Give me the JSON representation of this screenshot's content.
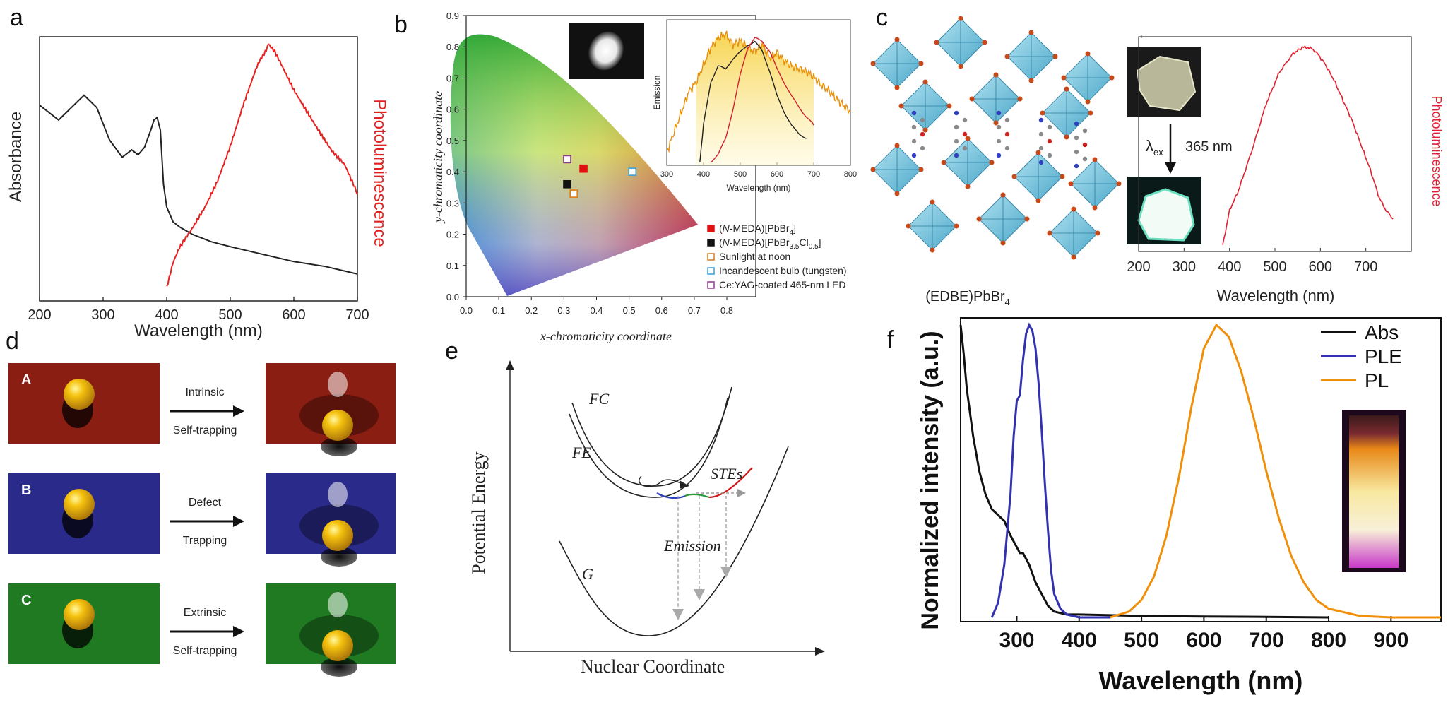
{
  "panel_labels": {
    "a": "a",
    "b": "b",
    "c": "c",
    "d": "d",
    "e": "e",
    "f": "f"
  },
  "chart_data": [
    {
      "type": "line",
      "panel": "a",
      "xlabel": "Wavelength (nm)",
      "ylabel_left": "Absorbance",
      "ylabel_right": "Photoluminescence",
      "xlim": [
        200,
        700
      ],
      "xticks": [
        "200",
        "300",
        "400",
        "500",
        "600",
        "700"
      ],
      "series": [
        {
          "color": "#222222",
          "x": [
            200,
            215,
            230,
            250,
            270,
            290,
            310,
            330,
            345,
            355,
            365,
            375,
            380,
            385,
            390,
            395,
            400,
            410,
            420,
            440,
            470,
            500,
            550,
            600,
            650,
            700
          ],
          "values": [
            0.76,
            0.73,
            0.7,
            0.75,
            0.8,
            0.75,
            0.62,
            0.55,
            0.58,
            0.56,
            0.59,
            0.66,
            0.7,
            0.71,
            0.66,
            0.44,
            0.35,
            0.29,
            0.27,
            0.24,
            0.21,
            0.19,
            0.16,
            0.13,
            0.11,
            0.08
          ]
        },
        {
          "color": "#e82020",
          "x": [
            400,
            410,
            420,
            440,
            460,
            480,
            500,
            520,
            540,
            555,
            560,
            570,
            580,
            600,
            620,
            640,
            660,
            680,
            700
          ],
          "values": [
            0.02,
            0.12,
            0.18,
            0.26,
            0.35,
            0.46,
            0.6,
            0.76,
            0.9,
            0.98,
            1.0,
            0.97,
            0.92,
            0.82,
            0.74,
            0.66,
            0.58,
            0.52,
            0.4
          ]
        }
      ]
    },
    {
      "type": "scatter",
      "panel": "b",
      "xlabel": "x-chromaticity coordinate",
      "ylabel": "y-chromaticity coordinate",
      "xlim": [
        0,
        0.8
      ],
      "ylim": [
        0,
        0.9
      ],
      "xticks": [
        "0.0",
        "0.1",
        "0.2",
        "0.3",
        "0.4",
        "0.5",
        "0.6",
        "0.7",
        "0.8"
      ],
      "yticks": [
        "0.0",
        "0.1",
        "0.2",
        "0.3",
        "0.4",
        "0.5",
        "0.6",
        "0.7",
        "0.8",
        "0.9"
      ],
      "points": [
        {
          "x": 0.36,
          "y": 0.41,
          "color": "#e01010",
          "filled": true
        },
        {
          "x": 0.31,
          "y": 0.36,
          "color": "#111111",
          "filled": true
        },
        {
          "x": 0.33,
          "y": 0.33,
          "color": "#e07a10",
          "filled": false
        },
        {
          "x": 0.51,
          "y": 0.4,
          "color": "#3aa0d8",
          "filled": false
        },
        {
          "x": 0.31,
          "y": 0.44,
          "color": "#8a3a8a",
          "filled": false
        }
      ],
      "legend": [
        {
          "name_pre": "(",
          "name_em": "N",
          "name_post": "-MEDA)[PbBr",
          "sub1": "4",
          "name_tail": "]",
          "sub2": "",
          "tail2": "",
          "color": "#e01010",
          "filled": true
        },
        {
          "name_pre": "(",
          "name_em": "N",
          "name_post": "-MEDA)[PbBr",
          "sub1": "3.5",
          "name_tail": "Cl",
          "sub2": "0.5",
          "tail2": "]",
          "color": "#111111",
          "filled": true
        },
        {
          "name_pre": "Sunlight at noon",
          "name_em": "",
          "name_post": "",
          "sub1": "",
          "name_tail": "",
          "sub2": "",
          "tail2": "",
          "color": "#e07a10",
          "filled": false
        },
        {
          "name_pre": "Incandescent bulb (tungsten)",
          "name_em": "",
          "name_post": "",
          "sub1": "",
          "name_tail": "",
          "sub2": "",
          "tail2": "",
          "color": "#3aa0d8",
          "filled": false
        },
        {
          "name_pre": "Ce:YAG-coated 465-nm LED",
          "name_em": "",
          "name_post": "",
          "sub1": "",
          "name_tail": "",
          "sub2": "",
          "tail2": "",
          "color": "#8a3a8a",
          "filled": false
        }
      ],
      "inset": {
        "type": "line",
        "xlabel": "Wavelength (nm)",
        "ylabel": "Emission",
        "xlim": [
          300,
          800
        ],
        "xticks": [
          "300",
          "400",
          "500",
          "600",
          "700",
          "800"
        ],
        "series": [
          {
            "color": "#e8900a",
            "x": [
              300,
              320,
              340,
              360,
              380,
              400,
              420,
              440,
              460,
              480,
              500,
              520,
              540,
              560,
              580,
              600,
              620,
              640,
              660,
              680,
              700,
              720,
              740,
              760,
              780,
              800
            ],
            "values": [
              0.1,
              0.25,
              0.4,
              0.55,
              0.62,
              0.75,
              0.88,
              0.95,
              0.98,
              0.9,
              0.93,
              0.88,
              0.85,
              0.9,
              0.8,
              0.84,
              0.78,
              0.74,
              0.72,
              0.7,
              0.66,
              0.6,
              0.56,
              0.5,
              0.45,
              0.4
            ]
          },
          {
            "color": "#222222",
            "x": [
              390,
              400,
              420,
              440,
              460,
              480,
              500,
              520,
              540,
              560,
              580,
              600,
              620,
              640,
              660,
              680
            ],
            "values": [
              0.02,
              0.3,
              0.62,
              0.74,
              0.72,
              0.8,
              0.85,
              0.9,
              0.92,
              0.85,
              0.7,
              0.52,
              0.4,
              0.3,
              0.24,
              0.2
            ]
          },
          {
            "color": "#d02030",
            "x": [
              420,
              440,
              460,
              480,
              500,
              520,
              540,
              560,
              580,
              600,
              620,
              640,
              660,
              680,
              700
            ],
            "values": [
              0.02,
              0.08,
              0.2,
              0.42,
              0.68,
              0.88,
              0.95,
              0.92,
              0.85,
              0.72,
              0.62,
              0.52,
              0.44,
              0.36,
              0.3
            ]
          }
        ]
      }
    },
    {
      "type": "line",
      "panel": "c",
      "xlabel": "Wavelength (nm)",
      "ylabel": "Photoluminescence",
      "xlim": [
        200,
        800
      ],
      "xticks": [
        "200",
        "300",
        "400",
        "500",
        "600",
        "700"
      ],
      "series": [
        {
          "color": "#e02030",
          "x": [
            385,
            400,
            420,
            450,
            480,
            510,
            540,
            560,
            575,
            590,
            610,
            630,
            650,
            670,
            690,
            710,
            730,
            745,
            760
          ],
          "values": [
            0.03,
            0.2,
            0.3,
            0.5,
            0.72,
            0.88,
            0.97,
            1.0,
            1.0,
            0.98,
            0.92,
            0.84,
            0.74,
            0.64,
            0.52,
            0.4,
            0.26,
            0.2,
            0.16
          ]
        }
      ]
    },
    {
      "type": "line",
      "panel": "f",
      "xlabel": "Wavelength (nm)",
      "ylabel": "Normalized intensity (a.u.)",
      "xlim": [
        210,
        980
      ],
      "xticks": [
        "300",
        "400",
        "500",
        "600",
        "700",
        "800",
        "900"
      ],
      "legend": [
        "Abs",
        "PLE",
        "PL"
      ],
      "series": [
        {
          "name": "Abs",
          "color": "#111111",
          "x": [
            210,
            215,
            220,
            230,
            240,
            250,
            260,
            270,
            280,
            290,
            300,
            305,
            310,
            320,
            330,
            340,
            350,
            360,
            380,
            400,
            500,
            600,
            700,
            800
          ],
          "values": [
            1.0,
            0.9,
            0.78,
            0.62,
            0.5,
            0.42,
            0.37,
            0.35,
            0.33,
            0.28,
            0.24,
            0.22,
            0.22,
            0.18,
            0.12,
            0.08,
            0.04,
            0.02,
            0.01,
            0.01,
            0.005,
            0.003,
            0.002,
            0.0
          ]
        },
        {
          "name": "PLE",
          "color": "#3232b0",
          "x": [
            260,
            270,
            280,
            290,
            295,
            300,
            305,
            310,
            315,
            320,
            325,
            330,
            335,
            340,
            345,
            350,
            355,
            360,
            370,
            380,
            400,
            450
          ],
          "values": [
            0.0,
            0.05,
            0.18,
            0.42,
            0.62,
            0.74,
            0.76,
            0.88,
            0.97,
            1.0,
            0.98,
            0.92,
            0.8,
            0.64,
            0.46,
            0.3,
            0.16,
            0.08,
            0.03,
            0.01,
            0.0,
            0.0
          ]
        },
        {
          "name": "PL",
          "color": "#f0900a",
          "x": [
            450,
            480,
            500,
            520,
            540,
            560,
            580,
            600,
            620,
            640,
            660,
            680,
            700,
            720,
            740,
            760,
            780,
            800,
            850,
            900,
            980
          ],
          "values": [
            0.0,
            0.02,
            0.06,
            0.14,
            0.28,
            0.48,
            0.72,
            0.92,
            1.0,
            0.96,
            0.84,
            0.68,
            0.5,
            0.34,
            0.21,
            0.12,
            0.06,
            0.03,
            0.005,
            0.0,
            0.0
          ]
        }
      ]
    }
  ],
  "panel_c": {
    "compound": "(EDBE)PbBr",
    "compound_sub": "4",
    "lambda": "λ",
    "lambda_sub": "ex",
    "excitation": "365 nm"
  },
  "panel_d": {
    "rows": [
      {
        "letter": "A",
        "line1": "Intrinsic",
        "line2": "Self-trapping",
        "color": "#8a1e12"
      },
      {
        "letter": "B",
        "line1": "Defect",
        "line2": "Trapping",
        "color": "#2a2a8a"
      },
      {
        "letter": "C",
        "line1": "Extrinsic",
        "line2": "Self-trapping",
        "color": "#1f7a22"
      }
    ]
  },
  "panel_e": {
    "ylabel": "Potential Energy",
    "xlabel": "Nuclear Coordinate",
    "fc": "FC",
    "fe": "FE",
    "stes": "STEs",
    "emission": "Emission",
    "g": "G"
  }
}
